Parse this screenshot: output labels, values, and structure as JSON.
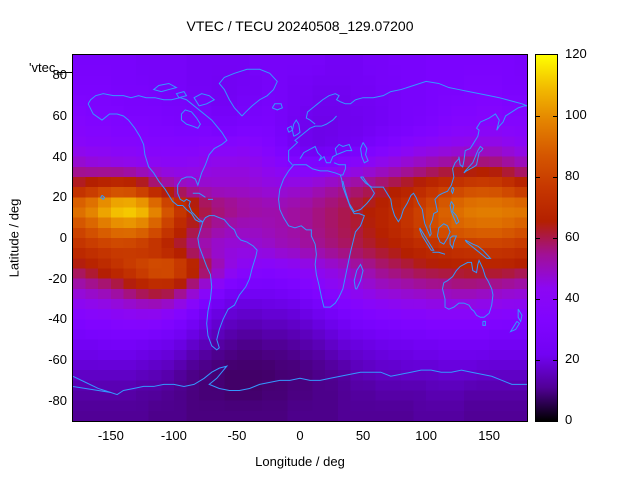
{
  "chart": {
    "title": "VTEC / TECU 20240508_129.07200",
    "key_label": "'vtec_",
    "x_axis": {
      "label": "Longitude / deg",
      "min": -180,
      "max": 180,
      "ticks": [
        -150,
        -100,
        -50,
        0,
        50,
        100,
        150
      ]
    },
    "y_axis": {
      "label": "Latitude / deg",
      "min": -90,
      "max": 90,
      "ticks": [
        80,
        60,
        40,
        20,
        0,
        -20,
        -40,
        -60,
        -80
      ]
    },
    "colorbar": {
      "min": 0,
      "max": 120,
      "ticks": [
        0,
        20,
        40,
        60,
        80,
        100,
        120
      ],
      "palette_stops": [
        "#000000",
        "#510096",
        "#7202f3",
        "#8004ff",
        "#8c07f3",
        "#a11096",
        "#b42000",
        "#c63700",
        "#d55700",
        "#e48300",
        "#f2ba00",
        "#ffff00"
      ]
    },
    "colors": {
      "background": "#ffffff",
      "border": "#000000",
      "text": "#000000",
      "coastline": "#3399ff"
    }
  },
  "chart_data": {
    "type": "heatmap",
    "title": "VTEC / TECU 20240508_129.07200",
    "xlabel": "Longitude / deg",
    "ylabel": "Latitude / deg",
    "value_unit": "TECU",
    "xlim": [
      -180,
      180
    ],
    "ylim": [
      -90,
      90
    ],
    "zlim": [
      0,
      120
    ],
    "grid_note": "rows are latitude bands top(85N) to bottom(85S) in 10 deg steps; columns are longitude -175E to 175E in 10 deg steps; values are VTEC in TECU",
    "lat_centers_top_to_bottom": [
      85,
      75,
      65,
      55,
      45,
      35,
      25,
      15,
      5,
      -5,
      -15,
      -25,
      -35,
      -45,
      -55,
      -65,
      -75,
      -85
    ],
    "lon_centers": [
      -175,
      -165,
      -155,
      -145,
      -135,
      -125,
      -115,
      -105,
      -95,
      -85,
      -75,
      -65,
      -55,
      -45,
      -35,
      -25,
      -15,
      -5,
      5,
      15,
      25,
      35,
      45,
      55,
      65,
      75,
      85,
      95,
      105,
      115,
      125,
      135,
      145,
      155,
      165,
      175
    ],
    "values": [
      [
        27,
        27,
        27,
        27,
        27,
        26,
        26,
        26,
        26,
        25,
        25,
        25,
        25,
        25,
        26,
        26,
        26,
        26,
        26,
        26,
        25,
        25,
        25,
        26,
        26,
        27,
        27,
        27,
        28,
        28,
        28,
        28,
        28,
        28,
        28,
        27
      ],
      [
        28,
        28,
        28,
        27,
        27,
        27,
        26,
        26,
        26,
        25,
        25,
        24,
        24,
        25,
        25,
        26,
        26,
        25,
        25,
        24,
        24,
        24,
        25,
        25,
        26,
        26,
        27,
        27,
        28,
        28,
        28,
        29,
        29,
        29,
        28,
        28
      ],
      [
        30,
        29,
        29,
        29,
        28,
        28,
        28,
        27,
        27,
        26,
        26,
        25,
        25,
        26,
        26,
        27,
        26,
        25,
        24,
        23,
        23,
        23,
        24,
        24,
        25,
        26,
        27,
        27,
        28,
        29,
        30,
        30,
        31,
        31,
        30,
        30
      ],
      [
        32,
        31,
        31,
        30,
        30,
        30,
        29,
        29,
        28,
        28,
        28,
        27,
        27,
        28,
        28,
        28,
        26,
        24,
        23,
        22,
        22,
        23,
        23,
        24,
        25,
        26,
        27,
        28,
        29,
        31,
        32,
        32,
        33,
        33,
        32,
        32
      ],
      [
        35,
        34,
        34,
        33,
        33,
        32,
        32,
        32,
        32,
        32,
        33,
        33,
        33,
        34,
        33,
        31,
        28,
        25,
        23,
        22,
        23,
        24,
        25,
        27,
        29,
        31,
        33,
        35,
        36,
        37,
        38,
        39,
        40,
        40,
        38,
        36
      ],
      [
        44,
        42,
        41,
        40,
        39,
        38,
        37,
        36,
        36,
        37,
        38,
        39,
        39,
        39,
        38,
        36,
        34,
        32,
        31,
        31,
        32,
        34,
        36,
        38,
        40,
        42,
        44,
        46,
        48,
        50,
        52,
        53,
        54,
        53,
        50,
        47
      ],
      [
        62,
        66,
        70,
        72,
        70,
        64,
        56,
        50,
        46,
        44,
        43,
        42,
        42,
        42,
        41,
        40,
        40,
        41,
        42,
        44,
        46,
        48,
        50,
        52,
        55,
        58,
        61,
        64,
        68,
        72,
        75,
        78,
        79,
        78,
        74,
        68
      ],
      [
        95,
        100,
        108,
        114,
        116,
        112,
        100,
        86,
        74,
        64,
        56,
        52,
        50,
        48,
        47,
        46,
        46,
        47,
        48,
        50,
        52,
        54,
        57,
        60,
        63,
        66,
        70,
        76,
        82,
        88,
        92,
        95,
        96,
        96,
        95,
        95
      ],
      [
        80,
        85,
        90,
        94,
        95,
        92,
        84,
        74,
        64,
        56,
        50,
        47,
        45,
        44,
        44,
        45,
        46,
        47,
        48,
        50,
        52,
        54,
        56,
        59,
        62,
        66,
        70,
        75,
        80,
        84,
        87,
        89,
        90,
        90,
        88,
        85
      ],
      [
        68,
        71,
        73,
        74,
        73,
        70,
        66,
        60,
        54,
        48,
        44,
        41,
        40,
        40,
        41,
        42,
        44,
        45,
        47,
        48,
        50,
        52,
        54,
        56,
        58,
        60,
        62,
        65,
        67,
        69,
        71,
        72,
        73,
        73,
        72,
        70
      ],
      [
        56,
        60,
        64,
        69,
        74,
        79,
        84,
        85,
        79,
        68,
        56,
        46,
        39,
        35,
        33,
        32,
        33,
        34,
        36,
        38,
        40,
        42,
        45,
        47,
        50,
        52,
        54,
        56,
        57,
        58,
        59,
        60,
        60,
        60,
        59,
        57
      ],
      [
        43,
        45,
        47,
        50,
        54,
        58,
        61,
        60,
        53,
        45,
        37,
        31,
        27,
        26,
        26,
        26,
        27,
        28,
        30,
        32,
        34,
        36,
        38,
        40,
        42,
        43,
        44,
        45,
        46,
        46,
        47,
        47,
        46,
        45,
        44,
        43
      ],
      [
        34,
        35,
        36,
        37,
        38,
        39,
        39,
        37,
        34,
        30,
        26,
        22,
        20,
        19,
        19,
        20,
        20,
        21,
        23,
        25,
        27,
        29,
        31,
        32,
        33,
        34,
        35,
        35,
        36,
        36,
        36,
        36,
        35,
        35,
        34,
        34
      ],
      [
        28,
        29,
        29,
        30,
        30,
        30,
        29,
        28,
        26,
        23,
        20,
        17,
        15,
        14,
        14,
        15,
        15,
        16,
        17,
        19,
        21,
        23,
        25,
        26,
        27,
        27,
        28,
        28,
        29,
        29,
        29,
        29,
        29,
        28,
        28,
        28
      ],
      [
        23,
        23,
        24,
        24,
        24,
        23,
        22,
        21,
        19,
        16,
        14,
        12,
        11,
        10,
        10,
        11,
        11,
        12,
        13,
        14,
        16,
        18,
        19,
        20,
        21,
        22,
        22,
        23,
        23,
        24,
        24,
        24,
        24,
        23,
        23,
        23
      ],
      [
        18,
        18,
        18,
        18,
        18,
        17,
        16,
        15,
        13,
        11,
        10,
        9,
        8,
        8,
        8,
        8,
        9,
        9,
        10,
        11,
        12,
        13,
        15,
        16,
        17,
        17,
        18,
        18,
        18,
        19,
        19,
        19,
        18,
        18,
        18,
        18
      ],
      [
        14,
        14,
        14,
        14,
        14,
        13,
        13,
        12,
        11,
        10,
        9,
        9,
        8,
        8,
        8,
        9,
        9,
        10,
        10,
        11,
        11,
        12,
        13,
        13,
        14,
        14,
        14,
        14,
        15,
        15,
        15,
        14,
        14,
        14,
        14,
        14
      ],
      [
        12,
        12,
        12,
        12,
        12,
        12,
        11,
        11,
        11,
        10,
        10,
        10,
        10,
        10,
        10,
        10,
        10,
        11,
        11,
        11,
        11,
        12,
        12,
        12,
        12,
        12,
        12,
        13,
        13,
        13,
        13,
        12,
        12,
        12,
        12,
        12
      ]
    ]
  }
}
